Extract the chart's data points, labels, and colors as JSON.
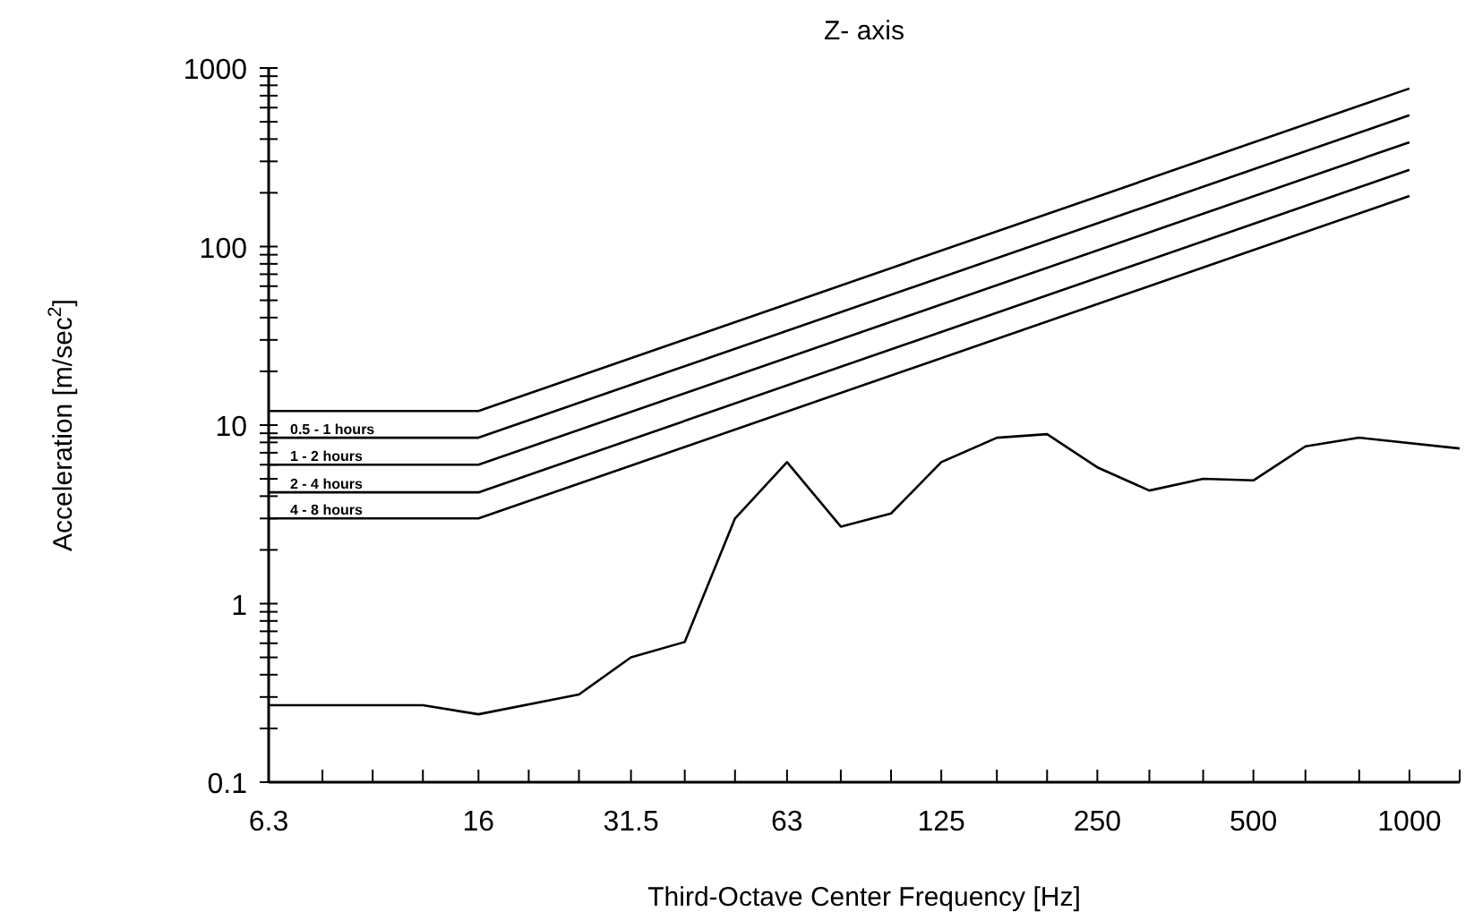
{
  "chart_data": {
    "type": "line",
    "title": "Z- axis",
    "xlabel": "Third-Octave Center Frequency [Hz]",
    "ylabel": "Acceleration [m/sec$^{2}$]",
    "log": "xy",
    "grid": false,
    "line_style": "solid",
    "marker": "none",
    "xlim": [
      6.3,
      1250
    ],
    "ylim": [
      0.1,
      1000
    ],
    "xticks": [
      6.3,
      {
        "value": 8,
        "label": null
      },
      {
        "value": 10,
        "label": null
      },
      {
        "value": 12.5,
        "label": null
      },
      16,
      {
        "value": 20,
        "label": null
      },
      {
        "value": 25,
        "label": null
      },
      31.5,
      {
        "value": 40,
        "label": null
      },
      {
        "value": 50,
        "label": null
      },
      63,
      {
        "value": 80,
        "label": null
      },
      {
        "value": 100,
        "label": null
      },
      125,
      {
        "value": 160,
        "label": null
      },
      {
        "value": 200,
        "label": null
      },
      250,
      {
        "value": 315,
        "label": null
      },
      {
        "value": 400,
        "label": null
      },
      500,
      {
        "value": 630,
        "label": null
      },
      {
        "value": 800,
        "label": null
      },
      1000,
      {
        "value": 1250,
        "label": null
      }
    ],
    "yticks": [
      0.1,
      {
        "value": 0.2,
        "label": null
      },
      {
        "value": 0.3,
        "label": null
      },
      {
        "value": 0.4,
        "label": null
      },
      {
        "value": 0.5,
        "label": null
      },
      {
        "value": 0.6,
        "label": null
      },
      {
        "value": 0.7,
        "label": null
      },
      {
        "value": 0.8,
        "label": null
      },
      {
        "value": 0.9,
        "label": null
      },
      1,
      {
        "value": 2,
        "label": null
      },
      {
        "value": 3,
        "label": null
      },
      {
        "value": 4,
        "label": null
      },
      {
        "value": 5,
        "label": null
      },
      {
        "value": 6,
        "label": null
      },
      {
        "value": 7,
        "label": null
      },
      {
        "value": 8,
        "label": null
      },
      {
        "value": 9,
        "label": null
      },
      10,
      {
        "value": 20,
        "label": null
      },
      {
        "value": 30,
        "label": null
      },
      {
        "value": 40,
        "label": null
      },
      {
        "value": 50,
        "label": null
      },
      {
        "value": 60,
        "label": null
      },
      {
        "value": 70,
        "label": null
      },
      {
        "value": 80,
        "label": null
      },
      {
        "value": 90,
        "label": null
      },
      100,
      {
        "value": 200,
        "label": null
      },
      {
        "value": 300,
        "label": null
      },
      {
        "value": 400,
        "label": null
      },
      {
        "value": 500,
        "label": null
      },
      {
        "value": 600,
        "label": null
      },
      {
        "value": 700,
        "label": null
      },
      {
        "value": 800,
        "label": null
      },
      {
        "value": 900,
        "label": null
      },
      1000
    ],
    "series": [
      {
        "color": "#000000",
        "x": [
          6.3,
          16,
          1000
        ],
        "values": [
          12,
          12,
          768
        ]
      },
      {
        "name": "0.5 - 1 hours",
        "color": "#000000",
        "x": [
          6.3,
          16,
          1000
        ],
        "values": [
          8.5,
          8.5,
          544
        ]
      },
      {
        "name": "1 - 2 hours",
        "color": "#000000",
        "x": [
          6.3,
          16,
          1000
        ],
        "values": [
          6,
          6,
          384
        ]
      },
      {
        "name": "2 - 4 hours",
        "color": "#000000",
        "x": [
          6.3,
          16,
          1000
        ],
        "values": [
          4.2,
          4.2,
          269
        ]
      },
      {
        "name": "4 - 8 hours",
        "color": "#000000",
        "x": [
          6.3,
          16,
          1000
        ],
        "values": [
          3,
          3,
          192
        ]
      },
      {
        "color": "#000000",
        "x": [
          6.3,
          12.5,
          16,
          25,
          31.5,
          40,
          50,
          63,
          80,
          100,
          125,
          160,
          200,
          250,
          315,
          400,
          500,
          630,
          800,
          1250
        ],
        "values": [
          0.27,
          0.27,
          0.24,
          0.31,
          0.5,
          0.61,
          3,
          6.2,
          2.7,
          3.2,
          6.2,
          8.5,
          8.9,
          5.8,
          4.3,
          5,
          4.9,
          7.6,
          8.5,
          7.4
        ]
      }
    ]
  }
}
